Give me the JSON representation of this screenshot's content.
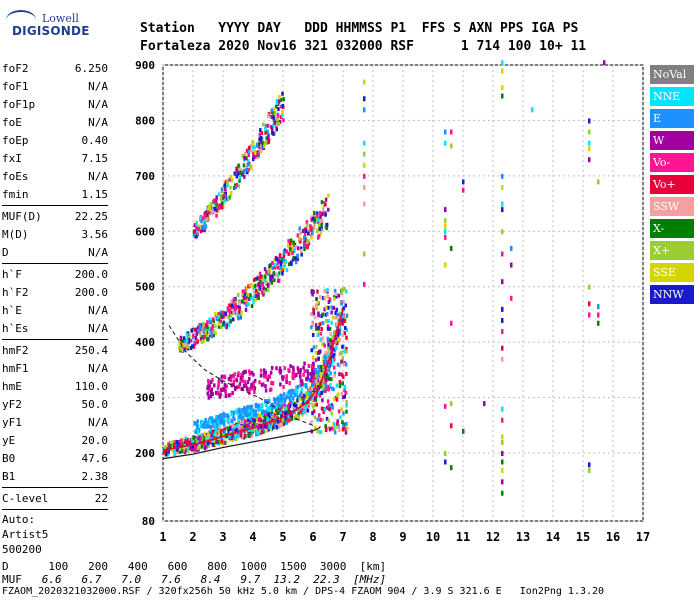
{
  "logo": {
    "top": "Lowell",
    "main": "DIGISONDE"
  },
  "header": {
    "line1": "Station   YYYY DAY   DDD HHMMSS P1  FFS S AXN PPS IGA PS",
    "line2": "Fortaleza 2020 Nov16 321 032000 RSF      1 714 100 10+ 11"
  },
  "params": [
    {
      "group": [
        {
          "label": "foF2",
          "value": "6.250"
        },
        {
          "label": "foF1",
          "value": "N/A"
        },
        {
          "label": "foF1p",
          "value": "N/A"
        },
        {
          "label": "foE",
          "value": "N/A"
        },
        {
          "label": "foEp",
          "value": "0.40"
        },
        {
          "label": "fxI",
          "value": "7.15"
        },
        {
          "label": "foEs",
          "value": "N/A"
        },
        {
          "label": "fmin",
          "value": "1.15"
        }
      ]
    },
    {
      "group": [
        {
          "label": "MUF(D)",
          "value": "22.25"
        },
        {
          "label": "M(D)",
          "value": "3.56"
        },
        {
          "label": "D",
          "value": "N/A"
        }
      ]
    },
    {
      "group": [
        {
          "label": "h`F",
          "value": "200.0"
        },
        {
          "label": "h`F2",
          "value": "200.0"
        },
        {
          "label": "h`E",
          "value": "N/A"
        },
        {
          "label": "h`Es",
          "value": "N/A"
        }
      ]
    },
    {
      "group": [
        {
          "label": "hmF2",
          "value": "250.4"
        },
        {
          "label": "hmF1",
          "value": "N/A"
        },
        {
          "label": "hmE",
          "value": "110.0"
        },
        {
          "label": "yF2",
          "value": "50.0"
        },
        {
          "label": "yF1",
          "value": "N/A"
        },
        {
          "label": "yE",
          "value": "20.0"
        },
        {
          "label": "B0",
          "value": "47.6"
        },
        {
          "label": "B1",
          "value": "2.38"
        }
      ]
    },
    {
      "group": [
        {
          "label": "C-level",
          "value": "22"
        }
      ]
    }
  ],
  "auto": {
    "line1": "Auto:",
    "line2": "Artist5",
    "line3": "500200"
  },
  "legend": [
    {
      "label": "NoVal",
      "color": "#808080"
    },
    {
      "label": "NNE",
      "color": "#00e5ff"
    },
    {
      "label": "E",
      "color": "#1e90ff"
    },
    {
      "label": "W",
      "color": "#a000a0"
    },
    {
      "label": "Vo-",
      "color": "#ff1493"
    },
    {
      "label": "Vo+",
      "color": "#e8003a"
    },
    {
      "label": "SSW",
      "color": "#f4a0a0"
    },
    {
      "label": "X-",
      "color": "#008000"
    },
    {
      "label": "X+",
      "color": "#9acd32"
    },
    {
      "label": "SSE",
      "color": "#d4d400"
    },
    {
      "label": "NNW",
      "color": "#1a1acc"
    }
  ],
  "chart_data": {
    "type": "scatter",
    "title": "",
    "xlabel": "",
    "ylabel": "",
    "xlim": [
      1,
      17
    ],
    "ylim": [
      80,
      900
    ],
    "xticks": [
      "1",
      "2",
      "3",
      "4",
      "5",
      "6",
      "7",
      "8",
      "9",
      "10",
      "11",
      "12",
      "13",
      "14",
      "15",
      "16",
      "17"
    ],
    "yticks": [
      "80",
      "200",
      "300",
      "400",
      "500",
      "600",
      "700",
      "800",
      "900"
    ],
    "grid": true,
    "traces": [
      {
        "name": "F2 O-trace",
        "x": [
          1.0,
          1.5,
          2.0,
          2.5,
          3.0,
          3.5,
          4.0,
          4.5,
          5.0,
          5.5,
          5.8,
          6.0,
          6.2,
          6.4,
          6.6,
          6.8,
          7.0
        ],
        "y": [
          205,
          210,
          215,
          222,
          230,
          238,
          245,
          255,
          265,
          280,
          292,
          305,
          320,
          345,
          380,
          420,
          460
        ]
      },
      {
        "name": "F2 second hop",
        "x": [
          1.5,
          2.0,
          2.5,
          3.0,
          3.5,
          4.0,
          4.5,
          5.0,
          5.5,
          6.0,
          6.5
        ],
        "y": [
          395,
          405,
          420,
          440,
          460,
          485,
          510,
          540,
          570,
          600,
          630
        ]
      },
      {
        "name": "F2 third hop",
        "x": [
          2.0,
          2.5,
          3.0,
          3.5,
          4.0,
          4.5,
          5.0
        ],
        "y": [
          595,
          625,
          660,
          700,
          740,
          780,
          820
        ]
      },
      {
        "name": "profile",
        "x": [
          1.0,
          2.0,
          3.0,
          4.0,
          5.0,
          5.5,
          6.0,
          6.2,
          6.25
        ],
        "y": [
          190,
          198,
          210,
          220,
          230,
          235,
          240,
          245,
          248
        ]
      },
      {
        "name": "profile dashed",
        "x": [
          1.2,
          1.8,
          2.4,
          3.0,
          3.6,
          4.2,
          4.8,
          5.4,
          6.0
        ],
        "y": [
          430,
          380,
          350,
          330,
          315,
          300,
          280,
          262,
          250
        ]
      }
    ],
    "isolated_echoes": [
      {
        "x": 7.7,
        "y": [
          870,
          840,
          820,
          760,
          740,
          720,
          700,
          680,
          650,
          560,
          505
        ]
      },
      {
        "x": 10.4,
        "y": [
          780,
          760,
          640,
          620,
          610,
          600,
          590,
          540,
          285,
          200,
          185
        ]
      },
      {
        "x": 10.6,
        "y": [
          780,
          755,
          570,
          435,
          290,
          250,
          175
        ]
      },
      {
        "x": 11.0,
        "y": [
          690,
          675,
          240
        ]
      },
      {
        "x": 11.7,
        "y": [
          290
        ]
      },
      {
        "x": 12.3,
        "y": [
          905,
          890,
          860,
          845,
          700,
          680,
          650,
          640,
          600,
          560,
          510,
          460,
          440,
          420,
          390,
          370,
          280,
          260,
          230,
          220,
          200,
          185,
          170,
          150,
          130
        ]
      },
      {
        "x": 12.6,
        "y": [
          570,
          540,
          480
        ]
      },
      {
        "x": 13.3,
        "y": [
          820
        ]
      },
      {
        "x": 15.2,
        "y": [
          800,
          780,
          760,
          750,
          730,
          500,
          470,
          450,
          180,
          170
        ]
      },
      {
        "x": 15.5,
        "y": [
          690,
          465,
          450,
          435
        ]
      },
      {
        "x": 15.7,
        "y": [
          905
        ]
      }
    ]
  },
  "dtable": {
    "row1": "D      100   200   400   600   800  1000  1500  3000  [km]",
    "row2_label": "MUF",
    "row2_values": "   6.6   6.7   7.0   7.6   8.4   9.7  13.2  22.3  [MHz]"
  },
  "footer": "FZAOM_2020321032000.RSF / 320fx256h 50 kHz 5.0 km / DPS-4 FZAOM 904 / 3.9 S 321.6 E   Ion2Png 1.3.20"
}
